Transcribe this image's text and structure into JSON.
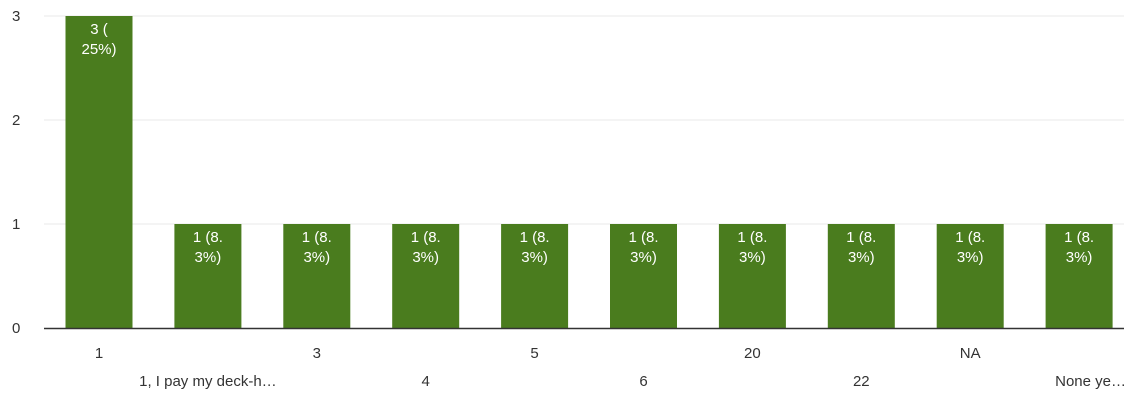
{
  "chart_data": {
    "type": "bar",
    "categories": [
      "1",
      "1, I pay my deck-h…",
      "3",
      "4",
      "5",
      "6",
      "20",
      "22",
      "NA",
      "None ye…"
    ],
    "values": [
      3,
      1,
      1,
      1,
      1,
      1,
      1,
      1,
      1,
      1
    ],
    "data_labels": [
      [
        "3 (",
        "25%)"
      ],
      [
        "1 (8.",
        "3%)"
      ],
      [
        "1 (8.",
        "3%)"
      ],
      [
        "1 (8.",
        "3%)"
      ],
      [
        "1 (8.",
        "3%)"
      ],
      [
        "1 (8.",
        "3%)"
      ],
      [
        "1 (8.",
        "3%)"
      ],
      [
        "1 (8.",
        "3%)"
      ],
      [
        "1 (8.",
        "3%)"
      ],
      [
        "1 (8.",
        "3%)"
      ]
    ],
    "y_ticks": [
      "0",
      "1",
      "2",
      "3"
    ],
    "ylim": [
      0,
      3
    ],
    "grid": true,
    "bar_color": "#4a7c1e",
    "grid_color": "#e8e8e8",
    "axis_color": "#333333",
    "text_color": "#333333",
    "label_color": "#ffffff"
  }
}
